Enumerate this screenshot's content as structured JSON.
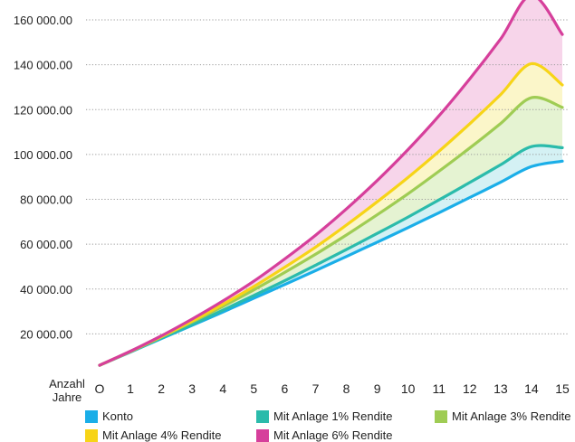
{
  "chart_data": {
    "type": "line",
    "x": [
      0,
      1,
      2,
      3,
      4,
      5,
      6,
      7,
      8,
      9,
      10,
      11,
      12,
      13,
      14,
      15
    ],
    "x_tick_labels": [
      "O",
      "1",
      "2",
      "3",
      "4",
      "5",
      "6",
      "7",
      "8",
      "9",
      "10",
      "11",
      "12",
      "13",
      "14",
      "15"
    ],
    "xlabel_lines": [
      "Anzahl",
      "Jahre"
    ],
    "ylim": [
      0,
      160000
    ],
    "y_ticks": [
      20000,
      40000,
      60000,
      80000,
      100000,
      120000,
      140000,
      160000
    ],
    "y_tick_labels": [
      "20 000.00",
      "40 000.00",
      "60 000.00",
      "80 000.00",
      "100 000.00",
      "120 000.00",
      "140 000.00",
      "160 000.00"
    ],
    "grid": "horizontal-dotted",
    "legend_position": "bottom",
    "series": [
      {
        "name": "Konto",
        "color": "#1aaee8",
        "values": [
          6000,
          11900,
          17900,
          23800,
          29800,
          35900,
          42000,
          48200,
          54500,
          60900,
          67400,
          74000,
          80800,
          87600,
          94600,
          97000
        ]
      },
      {
        "name": "Mit Anlage 1% Rendite",
        "color": "#2bbbab",
        "values": [
          6000,
          12000,
          18100,
          24200,
          30600,
          37100,
          43700,
          50600,
          57600,
          64800,
          72100,
          79700,
          87500,
          95400,
          103500,
          103000
        ]
      },
      {
        "name": "Mit Anlage 3% Rendite",
        "color": "#9fcc54",
        "values": [
          6000,
          12100,
          18600,
          25300,
          32300,
          39600,
          47400,
          55500,
          64100,
          73100,
          82500,
          92500,
          102900,
          113800,
          125300,
          121000
        ]
      },
      {
        "name": "Mit Anlage 4% Rendite",
        "color": "#f7d417",
        "values": [
          6000,
          12200,
          18800,
          25700,
          33200,
          41100,
          49700,
          58700,
          68500,
          78900,
          89800,
          101400,
          113700,
          126700,
          140500,
          131000
        ]
      },
      {
        "name": "Mit Anlage 6% Rendite",
        "color": "#d63f9b",
        "values": [
          6000,
          12300,
          19100,
          26600,
          34700,
          43500,
          53400,
          64000,
          75700,
          88400,
          102200,
          117200,
          133700,
          151500,
          171000,
          153500
        ]
      }
    ],
    "fills": [
      {
        "between": [
          "Konto",
          "Mit Anlage 1% Rendite"
        ],
        "color": "#d4f1f4"
      },
      {
        "between": [
          "Mit Anlage 1% Rendite",
          "Mit Anlage 3% Rendite"
        ],
        "color": "#e5f3d2"
      },
      {
        "between": [
          "Mit Anlage 3% Rendite",
          "Mit Anlage 4% Rendite"
        ],
        "color": "#fbf6c9"
      },
      {
        "between": [
          "Mit Anlage 4% Rendite",
          "Mit Anlage 6% Rendite"
        ],
        "color": "#f7d5ea"
      }
    ]
  }
}
